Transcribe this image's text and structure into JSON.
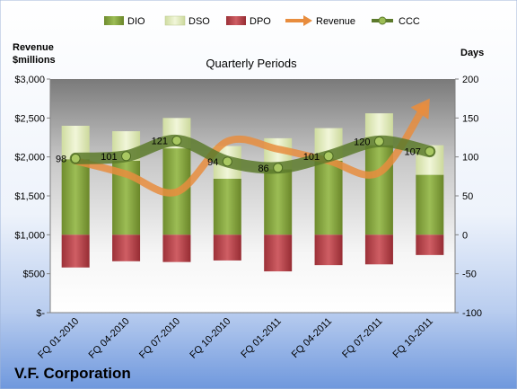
{
  "chart_data": {
    "type": "bar",
    "subtitle": "Quarterly Periods",
    "company": "V.F. Corporation",
    "ylabel_left_line1": "Revenue",
    "ylabel_left_line2": "$millions",
    "ylabel_right": "Days",
    "categories": [
      "FQ 01-2010",
      "FQ 04-2010",
      "FQ 07-2010",
      "FQ 10-2010",
      "FQ 01-2011",
      "FQ 04-2011",
      "FQ 07-2011",
      "FQ 10-2011"
    ],
    "series": [
      {
        "name": "DIO",
        "kind": "bar-stacked",
        "axis": "right",
        "color": "#7f9c3c",
        "values": [
          97,
          95,
          111,
          72,
          84,
          95,
          115,
          77
        ]
      },
      {
        "name": "DSO",
        "kind": "bar-stacked",
        "axis": "right",
        "color": "#dfeab8",
        "values": [
          43,
          38,
          39,
          42,
          40,
          42,
          41,
          38
        ]
      },
      {
        "name": "DPO",
        "kind": "bar-negative",
        "axis": "right",
        "color": "#b5454b",
        "values": [
          -42,
          -34,
          -35,
          -33,
          -47,
          -39,
          -38,
          -26
        ]
      },
      {
        "name": "Revenue",
        "kind": "line",
        "axis": "left",
        "color": "#e88d3e",
        "values": [
          1950,
          1780,
          1550,
          2200,
          2100,
          1950,
          1800,
          2750
        ]
      },
      {
        "name": "CCC",
        "kind": "line",
        "axis": "right",
        "color": "#5c7a2c",
        "values": [
          98,
          101,
          121,
          94,
          86,
          101,
          120,
          107
        ]
      }
    ],
    "ccc_labels": [
      "98",
      "101",
      "121",
      "94",
      "86",
      "101",
      "120",
      "107"
    ],
    "y_left": {
      "min": 0,
      "max": 3000,
      "ticks": [
        "$-",
        "$500",
        "$1,000",
        "$1,500",
        "$2,000",
        "$2,500",
        "$3,000"
      ]
    },
    "y_right": {
      "min": -100,
      "max": 200,
      "ticks": [
        "-100",
        "-50",
        "0",
        "50",
        "100",
        "150",
        "200"
      ]
    },
    "legend": {
      "position": "top",
      "entries": [
        "DIO",
        "DSO",
        "DPO",
        "Revenue",
        "CCC"
      ]
    },
    "grid": false
  }
}
